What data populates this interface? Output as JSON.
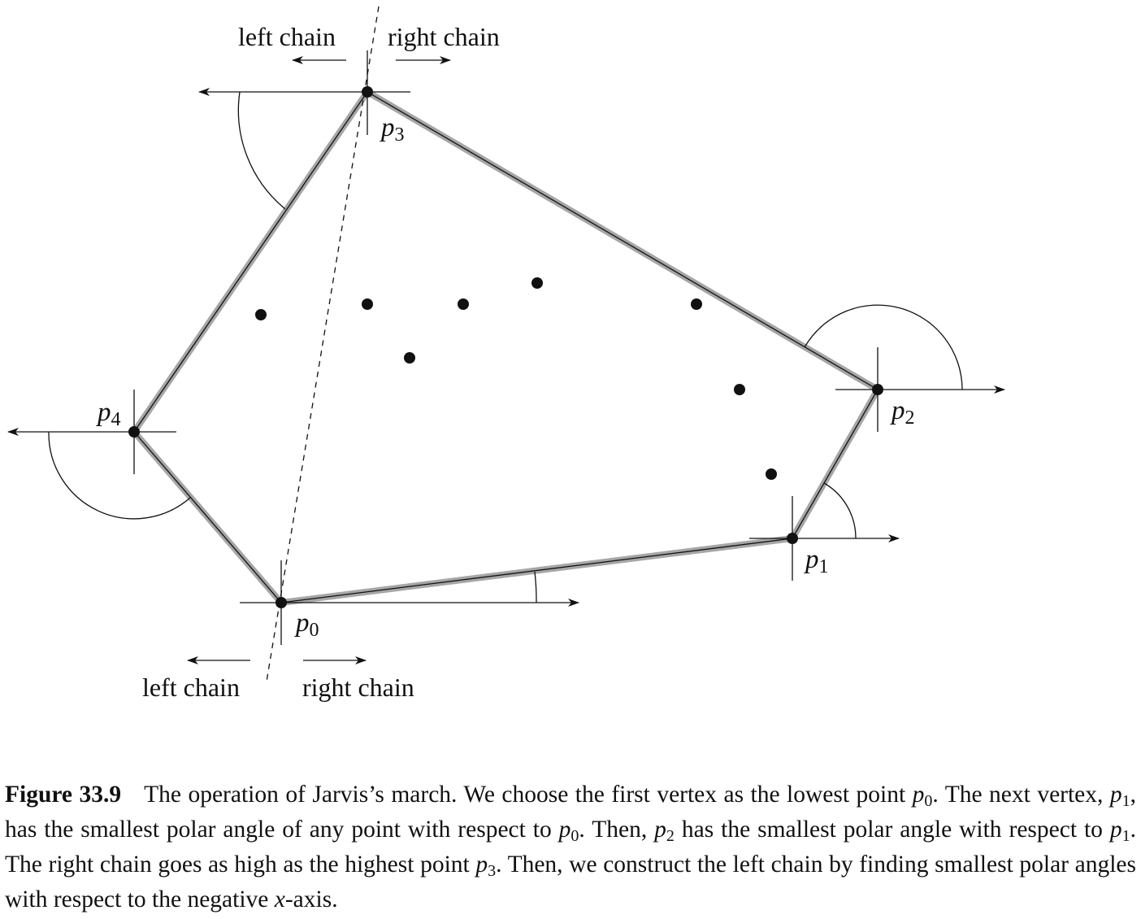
{
  "labels": {
    "top_left_chain": "left chain",
    "top_right_chain": "right chain",
    "bottom_left_chain": "left chain",
    "bottom_right_chain": "right chain"
  },
  "points": {
    "p0": {
      "letter": "p",
      "sub": "0"
    },
    "p1": {
      "letter": "p",
      "sub": "1"
    },
    "p2": {
      "letter": "p",
      "sub": "2"
    },
    "p3": {
      "letter": "p",
      "sub": "3"
    },
    "p4": {
      "letter": "p",
      "sub": "4"
    }
  },
  "caption": {
    "number": "Figure 33.9",
    "s1": "The operation of Jarvis’s march. We choose the first vertex as the lowest point ",
    "s2": ". The next vertex, ",
    "s3": ", has the smallest polar angle of any point with respect to ",
    "s4": ". Then, ",
    "s5": " has the smallest polar angle with respect to ",
    "s6": ". The right chain goes as high as the highest point ",
    "s7": ". Then, we construct the left chain by finding smallest polar angles with respect to the negative ",
    "s8": "-axis.",
    "p_letter": "p",
    "sub0": "0",
    "sub1": "1",
    "sub2": "2",
    "sub3": "3",
    "x_letter": "x"
  },
  "colors": {
    "hull_highlight": "#a6a6a6",
    "ink": "#111111"
  }
}
